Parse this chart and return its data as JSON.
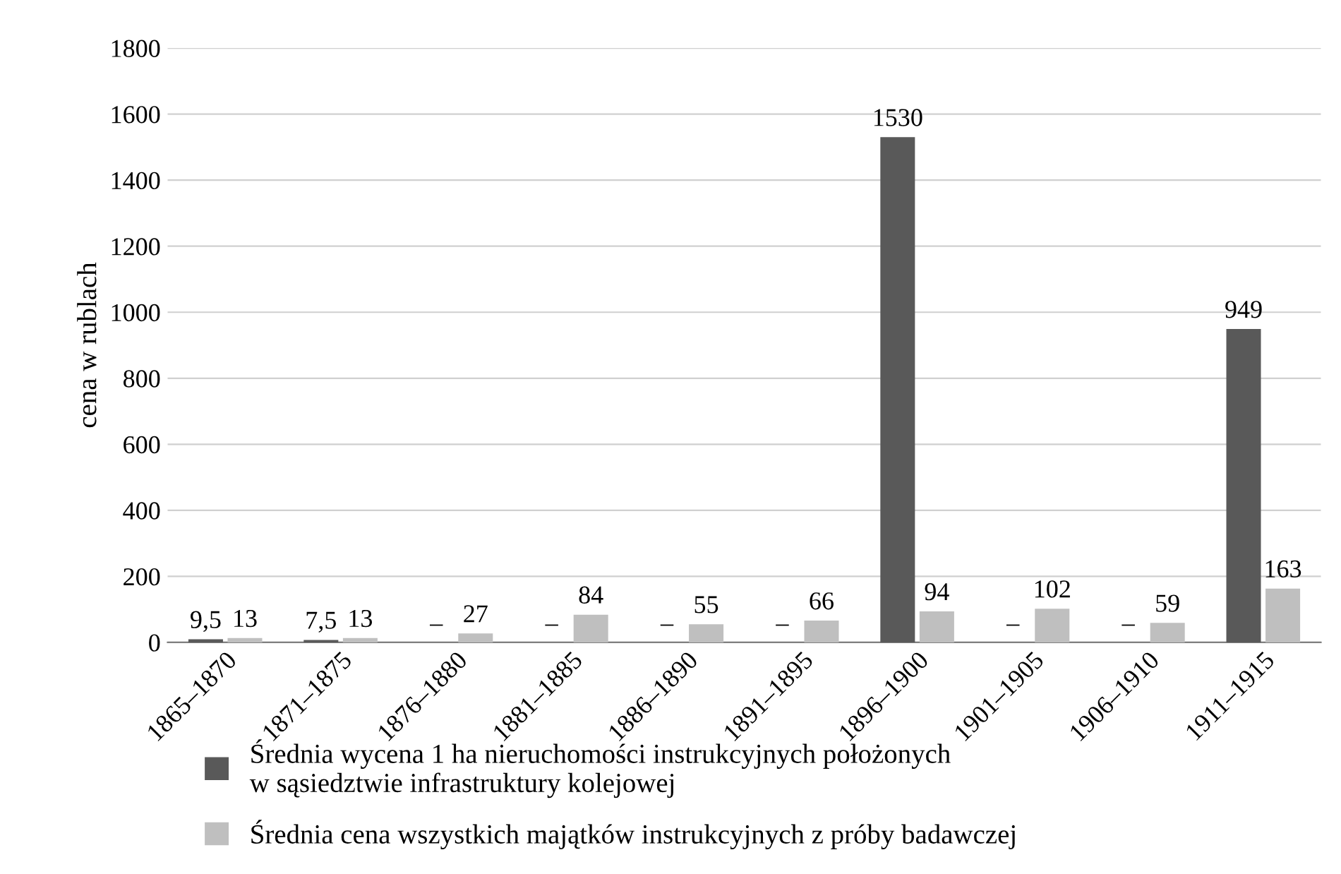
{
  "chart_data": {
    "type": "bar",
    "ylabel": "cena w rublach",
    "categories": [
      "1865–1870",
      "1871–1875",
      "1876–1880",
      "1881–1885",
      "1886–1890",
      "1891–1895",
      "1896–1900",
      "1901–1905",
      "1906–1910",
      "1911–1915"
    ],
    "series": [
      {
        "name": "Średnia wycena 1 ha nieruchomości instrukcyjnych położonych\nw sąsiedztwie infrastruktury kolejowej",
        "color": "#595959",
        "values": [
          9.5,
          7.5,
          null,
          null,
          null,
          null,
          1530,
          null,
          null,
          949
        ],
        "value_labels": [
          "9,5",
          "7,5",
          "–",
          "–",
          "–",
          "–",
          "1530",
          "–",
          "–",
          "949"
        ]
      },
      {
        "name": "Średnia cena wszystkich majątków instrukcyjnych z próby badawczej",
        "color": "#bfbfbf",
        "values": [
          13,
          13,
          27,
          84,
          55,
          66,
          94,
          102,
          59,
          163
        ],
        "value_labels": [
          "13",
          "13",
          "27",
          "84",
          "55",
          "66",
          "94",
          "102",
          "59",
          "163"
        ]
      }
    ],
    "ylim": [
      0,
      1800
    ],
    "yticks": [
      0,
      200,
      400,
      600,
      800,
      1000,
      1200,
      1400,
      1600,
      1800
    ],
    "grid": "y",
    "legend": "bottom"
  }
}
